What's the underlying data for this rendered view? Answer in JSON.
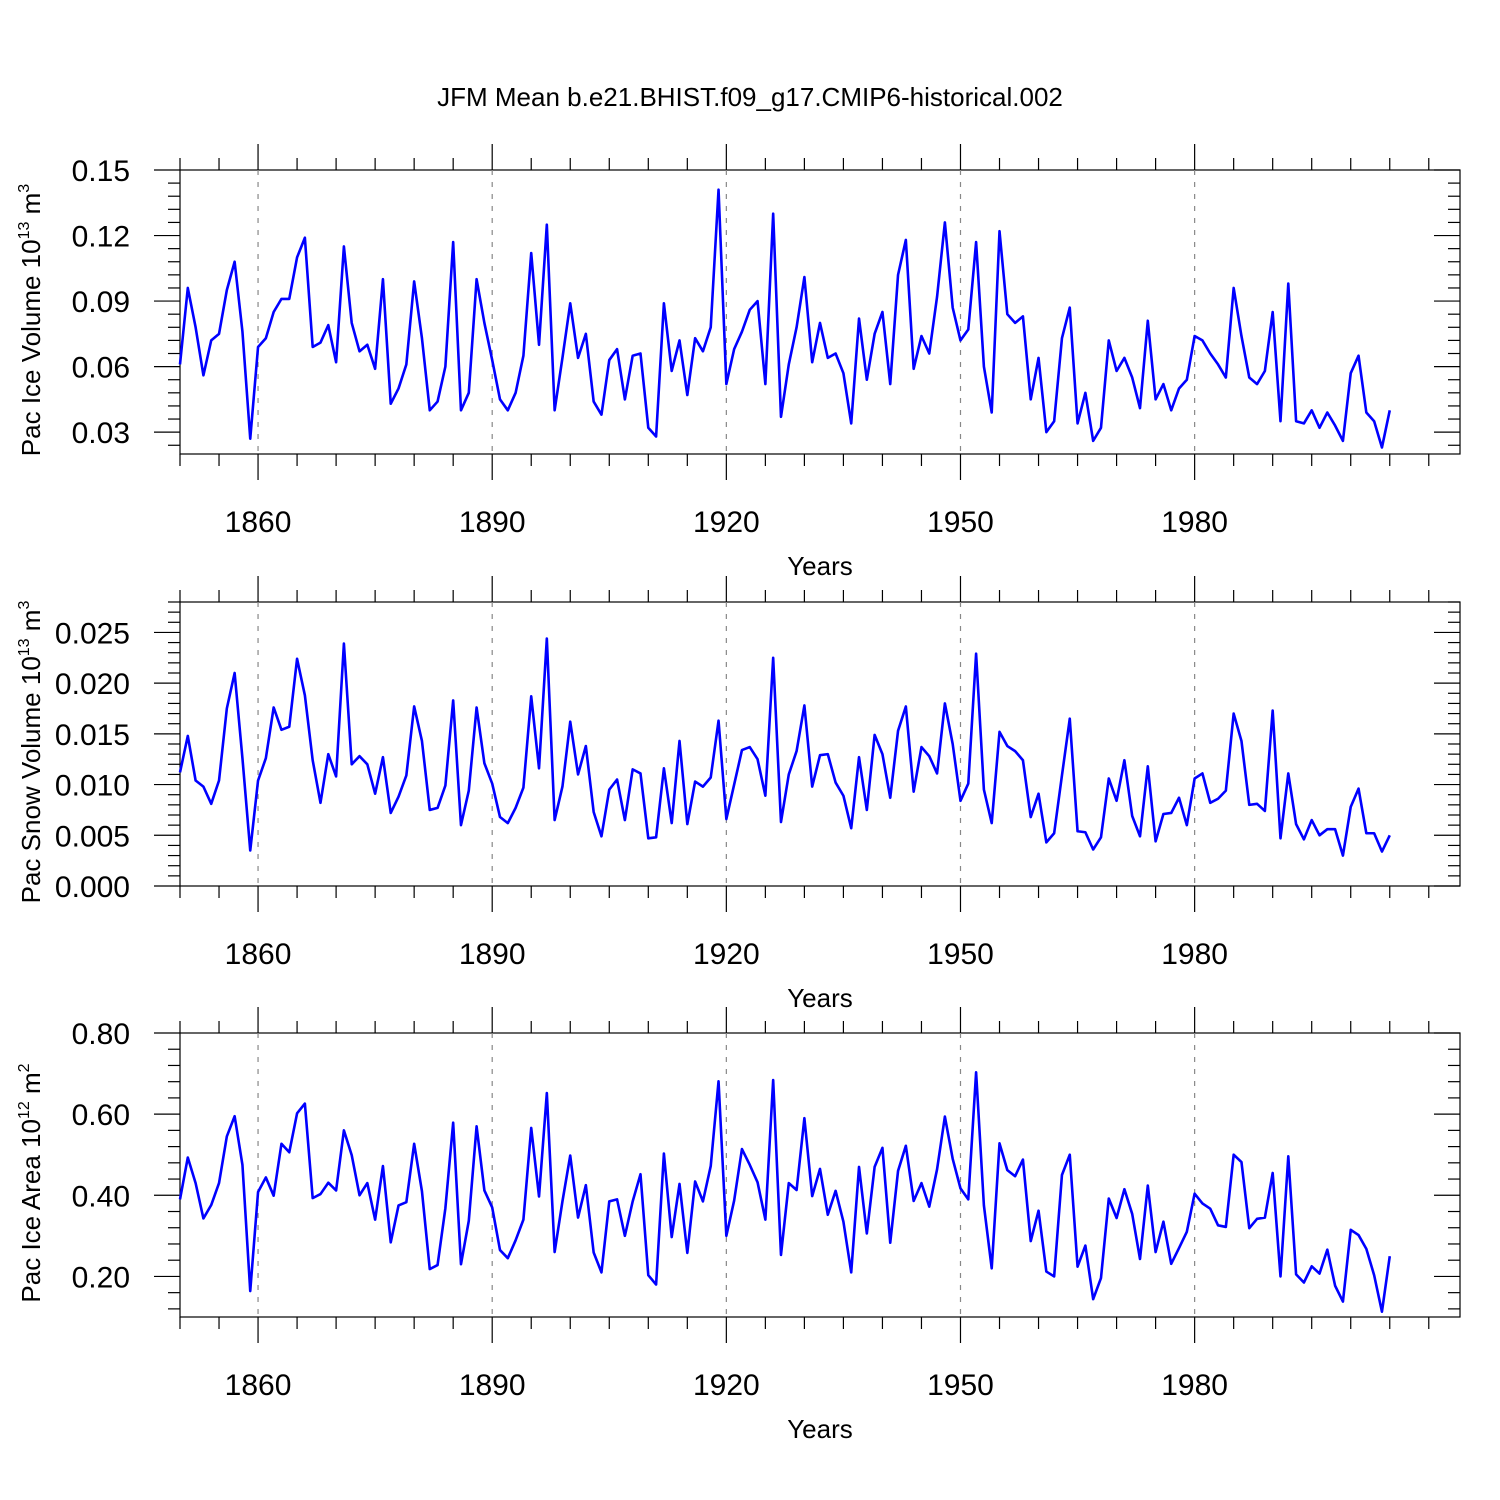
{
  "figure_title": "JFM Mean b.e21.BHIST.f09_g17.CMIP6-historical.002",
  "colors": {
    "line": "#0000ff",
    "axis": "#000000",
    "grid": "#888888"
  },
  "chart_data": [
    {
      "type": "line",
      "title": "JFM Mean b.e21.BHIST.f09_g17.CMIP6-historical.002",
      "xlabel": "Years",
      "ylabel": {
        "text": "Pac Ice Volume 10",
        "sup": "13",
        "unit": " m",
        "unit_sup": "3"
      },
      "x_start": 1850,
      "xlim": [
        1850,
        2014
      ],
      "ylim": [
        0.02,
        0.15
      ],
      "x_ticks": [
        "1860",
        "1890",
        "1920",
        "1950",
        "1980"
      ],
      "y_ticks": [
        "0.03",
        "0.06",
        "0.09",
        "0.12",
        "0.15"
      ],
      "series": [
        {
          "name": "Pac Ice Volume",
          "values": [
            0.061,
            0.096,
            0.078,
            0.056,
            0.072,
            0.075,
            0.095,
            0.108,
            0.076,
            0.027,
            0.069,
            0.073,
            0.085,
            0.091,
            0.091,
            0.11,
            0.119,
            0.069,
            0.071,
            0.079,
            0.062,
            0.115,
            0.08,
            0.067,
            0.07,
            0.059,
            0.1,
            0.043,
            0.05,
            0.061,
            0.099,
            0.073,
            0.04,
            0.044,
            0.06,
            0.117,
            0.04,
            0.048,
            0.1,
            0.08,
            0.063,
            0.045,
            0.04,
            0.048,
            0.065,
            0.112,
            0.07,
            0.125,
            0.04,
            0.064,
            0.089,
            0.064,
            0.075,
            0.044,
            0.038,
            0.063,
            0.068,
            0.045,
            0.065,
            0.066,
            0.032,
            0.028,
            0.089,
            0.058,
            0.072,
            0.047,
            0.073,
            0.067,
            0.078,
            0.141,
            0.052,
            0.068,
            0.076,
            0.086,
            0.09,
            0.052,
            0.13,
            0.037,
            0.061,
            0.078,
            0.101,
            0.062,
            0.08,
            0.064,
            0.066,
            0.057,
            0.034,
            0.082,
            0.054,
            0.075,
            0.085,
            0.052,
            0.102,
            0.118,
            0.059,
            0.074,
            0.066,
            0.092,
            0.126,
            0.087,
            0.072,
            0.077,
            0.117,
            0.06,
            0.039,
            0.122,
            0.084,
            0.08,
            0.083,
            0.045,
            0.064,
            0.03,
            0.035,
            0.073,
            0.087,
            0.034,
            0.048,
            0.026,
            0.032,
            0.072,
            0.058,
            0.064,
            0.055,
            0.041,
            0.081,
            0.045,
            0.052,
            0.04,
            0.05,
            0.054,
            0.074,
            0.072,
            0.066,
            0.061,
            0.055,
            0.096,
            0.074,
            0.055,
            0.052,
            0.058,
            0.085,
            0.035,
            0.098,
            0.035,
            0.034,
            0.04,
            0.032,
            0.039,
            0.033,
            0.026,
            0.057,
            0.065,
            0.039,
            0.035,
            0.023,
            0.04
          ]
        }
      ]
    },
    {
      "type": "line",
      "xlabel": "Years",
      "ylabel": {
        "text": "Pac Snow Volume 10",
        "sup": "13",
        "unit": " m",
        "unit_sup": "3"
      },
      "x_start": 1850,
      "xlim": [
        1850,
        2014
      ],
      "ylim": [
        0.0,
        0.028
      ],
      "x_ticks": [
        "1860",
        "1890",
        "1920",
        "1950",
        "1980"
      ],
      "y_ticks": [
        "0.000",
        "0.005",
        "0.010",
        "0.015",
        "0.020",
        "0.025"
      ],
      "series": [
        {
          "name": "Pac Snow Volume",
          "values": [
            0.0112,
            0.0148,
            0.0104,
            0.0098,
            0.0081,
            0.0104,
            0.0175,
            0.021,
            0.0126,
            0.0035,
            0.0104,
            0.0126,
            0.0176,
            0.0154,
            0.0157,
            0.0224,
            0.0188,
            0.0124,
            0.0082,
            0.013,
            0.0108,
            0.0239,
            0.012,
            0.0128,
            0.012,
            0.0091,
            0.0127,
            0.0072,
            0.0088,
            0.0109,
            0.0177,
            0.0143,
            0.0075,
            0.0077,
            0.0099,
            0.0183,
            0.006,
            0.0094,
            0.0176,
            0.0121,
            0.0101,
            0.0068,
            0.0062,
            0.0077,
            0.0097,
            0.0187,
            0.0116,
            0.0244,
            0.0065,
            0.0098,
            0.0162,
            0.011,
            0.0138,
            0.0073,
            0.0049,
            0.0095,
            0.0105,
            0.0065,
            0.0115,
            0.0111,
            0.0047,
            0.0048,
            0.0116,
            0.0062,
            0.0143,
            0.0061,
            0.0103,
            0.0098,
            0.0107,
            0.0163,
            0.0066,
            0.01,
            0.0134,
            0.0137,
            0.0125,
            0.0089,
            0.0225,
            0.0063,
            0.011,
            0.0133,
            0.0178,
            0.0098,
            0.0129,
            0.013,
            0.0102,
            0.0089,
            0.0057,
            0.0127,
            0.0075,
            0.0149,
            0.013,
            0.0087,
            0.0153,
            0.0177,
            0.0093,
            0.0137,
            0.0128,
            0.0111,
            0.018,
            0.014,
            0.0084,
            0.0101,
            0.0229,
            0.0095,
            0.0062,
            0.0152,
            0.0138,
            0.0133,
            0.0124,
            0.0068,
            0.0091,
            0.0043,
            0.0052,
            0.0109,
            0.0165,
            0.0054,
            0.0053,
            0.0036,
            0.0048,
            0.0106,
            0.0084,
            0.0124,
            0.0069,
            0.0049,
            0.0118,
            0.0044,
            0.0071,
            0.0072,
            0.0087,
            0.006,
            0.0106,
            0.0111,
            0.0082,
            0.0086,
            0.0094,
            0.017,
            0.0143,
            0.008,
            0.0081,
            0.0074,
            0.0173,
            0.0047,
            0.0111,
            0.0061,
            0.0046,
            0.0065,
            0.005,
            0.0056,
            0.0056,
            0.003,
            0.0078,
            0.0096,
            0.0052,
            0.0052,
            0.0034,
            0.005
          ]
        }
      ]
    },
    {
      "type": "line",
      "xlabel": "Years",
      "ylabel": {
        "text": "Pac Ice Area 10",
        "sup": "12",
        "unit": " m",
        "unit_sup": "2"
      },
      "x_start": 1850,
      "xlim": [
        1850,
        2014
      ],
      "ylim": [
        0.1,
        0.8
      ],
      "x_ticks": [
        "1860",
        "1890",
        "1920",
        "1950",
        "1980"
      ],
      "y_ticks": [
        "0.20",
        "0.40",
        "0.60",
        "0.80"
      ],
      "series": [
        {
          "name": "Pac Ice Area",
          "values": [
            0.39,
            0.493,
            0.43,
            0.343,
            0.376,
            0.43,
            0.545,
            0.595,
            0.475,
            0.164,
            0.408,
            0.444,
            0.399,
            0.527,
            0.506,
            0.602,
            0.626,
            0.393,
            0.403,
            0.431,
            0.412,
            0.56,
            0.499,
            0.4,
            0.43,
            0.34,
            0.472,
            0.284,
            0.375,
            0.383,
            0.527,
            0.41,
            0.218,
            0.228,
            0.368,
            0.579,
            0.23,
            0.337,
            0.57,
            0.412,
            0.37,
            0.265,
            0.245,
            0.289,
            0.34,
            0.566,
            0.397,
            0.652,
            0.26,
            0.385,
            0.498,
            0.345,
            0.425,
            0.259,
            0.21,
            0.385,
            0.39,
            0.3,
            0.385,
            0.452,
            0.203,
            0.18,
            0.503,
            0.297,
            0.428,
            0.258,
            0.434,
            0.385,
            0.472,
            0.681,
            0.3,
            0.387,
            0.514,
            0.475,
            0.432,
            0.34,
            0.684,
            0.253,
            0.43,
            0.413,
            0.59,
            0.398,
            0.465,
            0.352,
            0.411,
            0.335,
            0.21,
            0.47,
            0.306,
            0.47,
            0.517,
            0.283,
            0.46,
            0.522,
            0.386,
            0.43,
            0.372,
            0.464,
            0.594,
            0.49,
            0.417,
            0.39,
            0.703,
            0.375,
            0.22,
            0.528,
            0.462,
            0.447,
            0.488,
            0.287,
            0.362,
            0.212,
            0.2,
            0.45,
            0.5,
            0.224,
            0.276,
            0.144,
            0.196,
            0.392,
            0.344,
            0.415,
            0.354,
            0.243,
            0.424,
            0.26,
            0.335,
            0.231,
            0.27,
            0.31,
            0.404,
            0.38,
            0.367,
            0.326,
            0.322,
            0.5,
            0.482,
            0.319,
            0.342,
            0.345,
            0.455,
            0.2,
            0.496,
            0.205,
            0.185,
            0.225,
            0.207,
            0.266,
            0.177,
            0.138,
            0.315,
            0.302,
            0.268,
            0.203,
            0.113,
            0.25
          ]
        }
      ]
    }
  ]
}
